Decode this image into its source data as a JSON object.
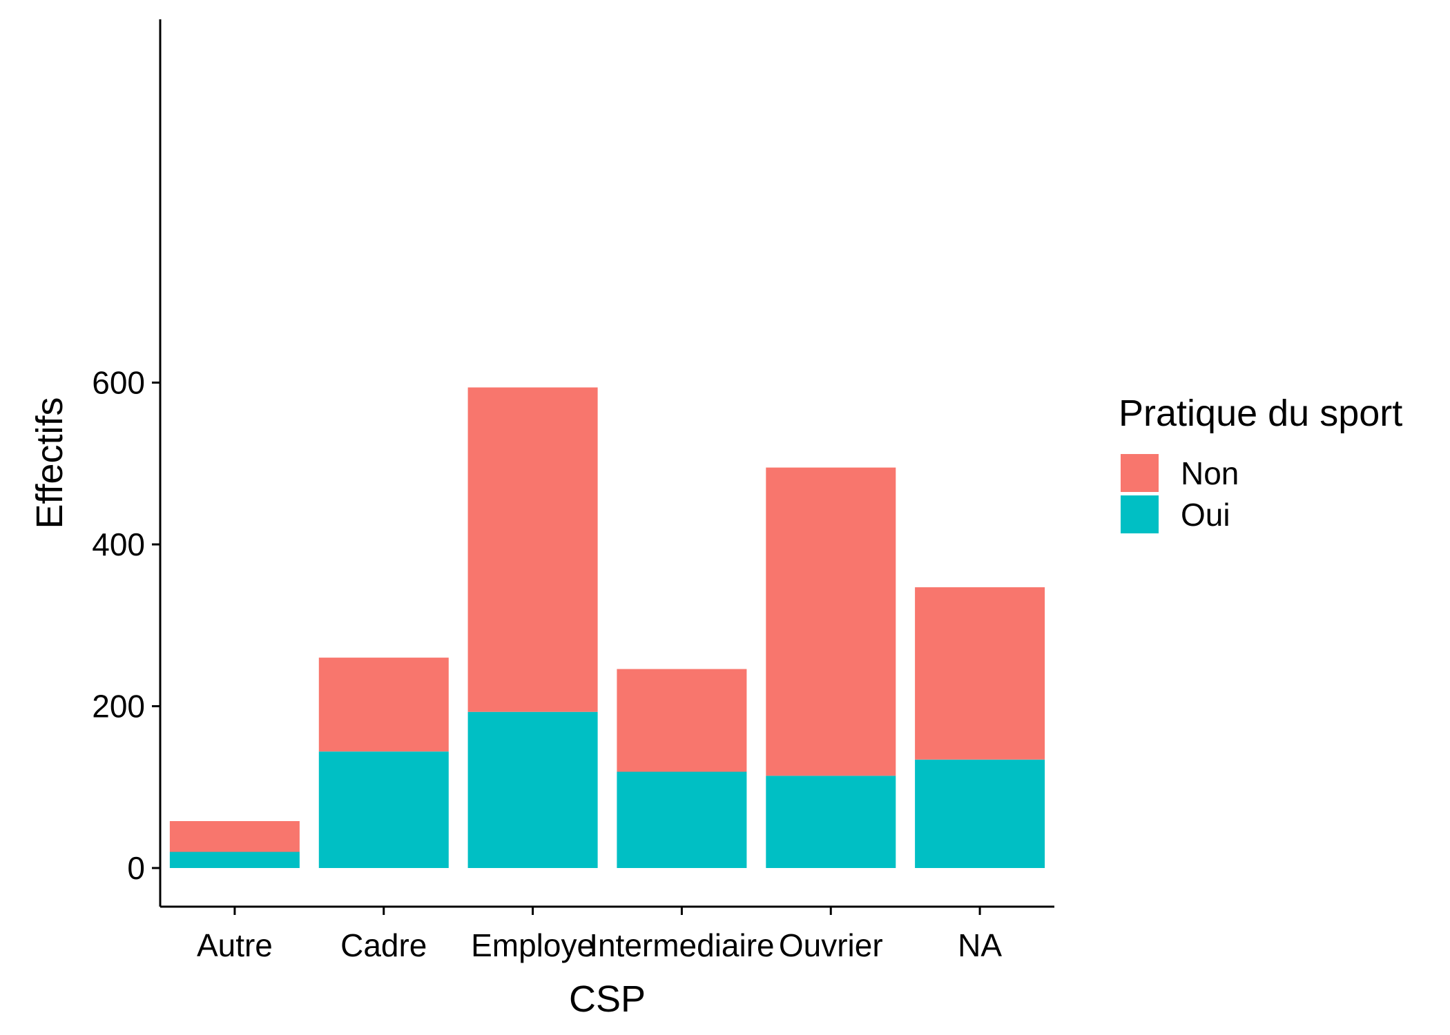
{
  "chart_data": {
    "type": "bar",
    "stacked": true,
    "categories": [
      "Autre",
      "Cadre",
      "Employe",
      "Intermediaire",
      "Ouvrier",
      "NA"
    ],
    "series": [
      {
        "name": "Oui",
        "color": "#00BFC4",
        "values": [
          20,
          144,
          193,
          119,
          114,
          134
        ]
      },
      {
        "name": "Non",
        "color": "#F8766D",
        "values": [
          38,
          116,
          401,
          127,
          381,
          213
        ]
      }
    ],
    "totals": [
      58,
      260,
      594,
      246,
      495,
      347
    ],
    "title": "",
    "xlabel": "CSP",
    "ylabel": "Effectifs",
    "ylim": [
      -28,
      625
    ],
    "yticks": [
      0,
      200,
      400,
      600
    ],
    "grid": false,
    "legend": {
      "title": "Pratique du sport",
      "placement": "right",
      "entries": [
        {
          "label": "Non",
          "color": "#F8766D"
        },
        {
          "label": "Oui",
          "color": "#00BFC4"
        }
      ]
    }
  }
}
